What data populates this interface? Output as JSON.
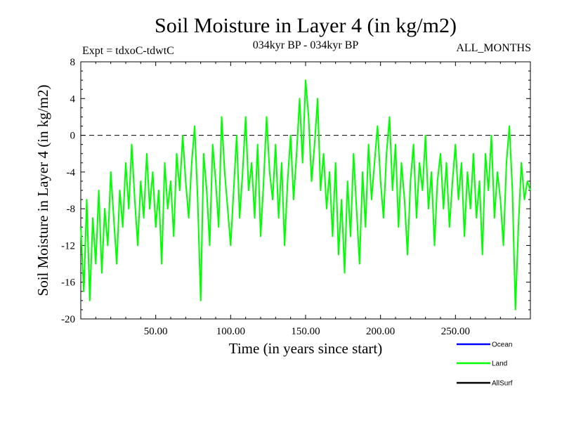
{
  "chart_data": {
    "type": "line",
    "title": "Soil Moisture in Layer 4 (in kg/m2)",
    "subtitle_left": "Expt = tdxoC-tdwtC",
    "subtitle_center": "034kyr BP - 034kyr BP",
    "subtitle_right": "ALL_MONTHS",
    "xlabel": "Time (in years since start)",
    "ylabel": "Soil Moisture in Layer 4 (in kg/m2)",
    "xlim": [
      0,
      300
    ],
    "ylim": [
      -20,
      8
    ],
    "x_ticks": [
      50,
      100,
      150,
      200,
      250
    ],
    "x_tick_labels": [
      "50.00",
      "100.00",
      "150.00",
      "200.00",
      "250.00"
    ],
    "y_ticks": [
      8,
      4,
      0,
      -4,
      -8,
      -12,
      -16,
      -20
    ],
    "y_tick_labels": [
      "8",
      "4",
      "0",
      "-4",
      "-8",
      "-12",
      "-16",
      "-20"
    ],
    "reference_line": {
      "y": 0,
      "style": "dashed"
    },
    "legend": {
      "position": "bottom-right"
    },
    "series": [
      {
        "name": "Ocean",
        "color": "#0000ff",
        "x": [],
        "y": []
      },
      {
        "name": "Land",
        "color": "#00ff00",
        "x": [
          0,
          2,
          4,
          6,
          8,
          10,
          12,
          14,
          16,
          18,
          20,
          22,
          24,
          26,
          28,
          30,
          32,
          34,
          36,
          38,
          40,
          42,
          44,
          46,
          48,
          50,
          52,
          54,
          56,
          58,
          60,
          62,
          64,
          66,
          68,
          70,
          72,
          74,
          76,
          78,
          80,
          82,
          84,
          86,
          88,
          90,
          92,
          94,
          96,
          98,
          100,
          102,
          104,
          106,
          108,
          110,
          112,
          114,
          116,
          118,
          120,
          122,
          124,
          126,
          128,
          130,
          132,
          134,
          136,
          138,
          140,
          142,
          144,
          146,
          148,
          150,
          152,
          154,
          156,
          158,
          160,
          162,
          164,
          166,
          168,
          170,
          172,
          174,
          176,
          178,
          180,
          182,
          184,
          186,
          188,
          190,
          192,
          194,
          196,
          198,
          200,
          202,
          204,
          206,
          208,
          210,
          212,
          214,
          216,
          218,
          220,
          222,
          224,
          226,
          228,
          230,
          232,
          234,
          236,
          238,
          240,
          242,
          244,
          246,
          248,
          250,
          252,
          254,
          256,
          258,
          260,
          262,
          264,
          266,
          268,
          270,
          272,
          274,
          276,
          278,
          280,
          282,
          284,
          286,
          288,
          290,
          292,
          294,
          296,
          298,
          300
        ],
        "y": [
          -10,
          -17,
          -7,
          -18,
          -9,
          -14,
          -6,
          -15,
          -8,
          -12,
          -4,
          -9,
          -14,
          -6,
          -10,
          -3,
          -8,
          -1,
          -7,
          -12,
          -5,
          -9,
          -2,
          -8,
          -4,
          -10,
          -6,
          -14,
          -3,
          -8,
          -5,
          -11,
          -2,
          -6,
          0,
          -5,
          -9,
          -3,
          1,
          -7,
          -18,
          -2,
          -6,
          -12,
          -1,
          -5,
          -10,
          2,
          -4,
          -8,
          -12,
          -6,
          0,
          -9,
          -4,
          2,
          -6,
          -3,
          -9,
          -1,
          -11,
          -5,
          2,
          -4,
          -7,
          -1,
          -9,
          -3,
          -12,
          -5,
          0,
          -7,
          -2,
          4,
          -3,
          6,
          2,
          -5,
          -1,
          4,
          -6,
          -2,
          -8,
          -4,
          -11,
          -3,
          -13,
          -7,
          -15,
          -5,
          -11,
          -2,
          -8,
          -14,
          -4,
          -10,
          -1,
          -7,
          -3,
          1,
          -5,
          -9,
          -2,
          2,
          -6,
          -1,
          -10,
          -3,
          -7,
          -13,
          -5,
          -1,
          -9,
          -3,
          -6,
          0,
          -8,
          -4,
          -12,
          -5,
          -2,
          -8,
          -3,
          -10,
          -5,
          -1,
          -7,
          -3,
          -11,
          -4,
          -8,
          -2,
          -9,
          -5,
          -13,
          -2,
          -6,
          0,
          -9,
          -4,
          -7,
          -12,
          -3,
          1,
          -6,
          -19,
          -10,
          -3,
          -7,
          -5,
          -6
        ]
      },
      {
        "name": "AllSurf",
        "color": "#000000",
        "x": [],
        "y": []
      }
    ]
  }
}
